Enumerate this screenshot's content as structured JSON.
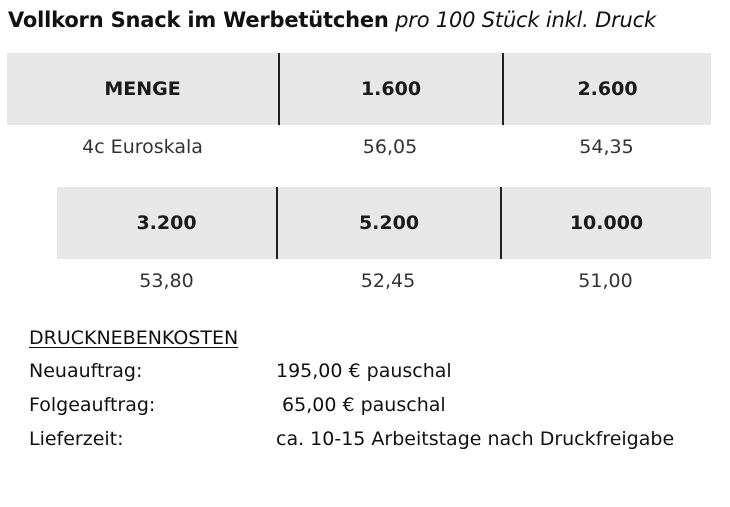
{
  "heading": {
    "title": "Vollkorn Snack im Werbetütchen",
    "subtitle": "pro 100 Stück inkl. Druck"
  },
  "price_table": {
    "row1": {
      "headers": [
        "MENGE",
        "1.600",
        "2.600"
      ],
      "values": [
        "4c Euroskala",
        "56,05",
        "54,35"
      ]
    },
    "row2": {
      "headers": [
        "3.200",
        "5.200",
        "10.000"
      ],
      "values": [
        "53,80",
        "52,45",
        "51,00"
      ]
    }
  },
  "additional_costs": {
    "title": "DRUCKNEBENKOSTEN",
    "items": [
      {
        "label": "Neuauftrag:",
        "value": "195,00 € pauschal"
      },
      {
        "label": "Folgeauftrag:",
        "value": " 65,00 € pauschal"
      },
      {
        "label": "Lieferzeit:",
        "value": "ca. 10-15 Arbeitstage nach Druckfreigabe"
      }
    ]
  }
}
